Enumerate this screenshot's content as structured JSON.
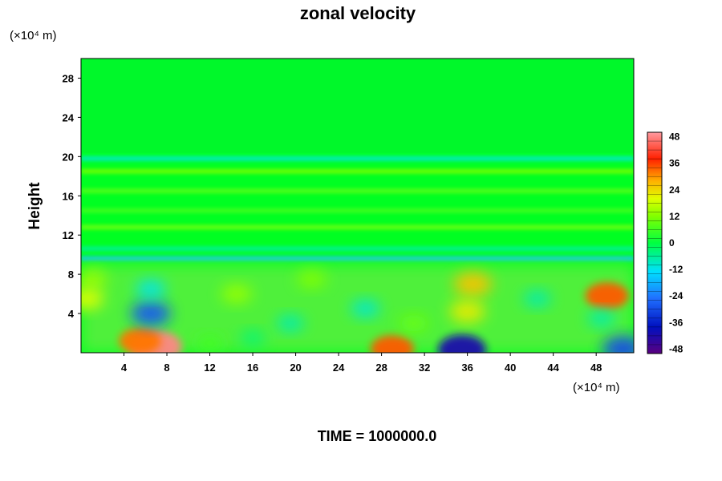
{
  "chart_data": {
    "type": "heatmap",
    "title": "zonal velocity",
    "ylabel": "Height",
    "x_unit": "(×10⁴ m)",
    "y_unit": "(×10⁴ m)",
    "footer": "TIME = 1000000.0",
    "xlim": [
      0,
      51.5
    ],
    "ylim": [
      0,
      30
    ],
    "x_ticks": [
      4,
      8,
      12,
      16,
      20,
      24,
      28,
      32,
      36,
      40,
      44,
      48
    ],
    "y_ticks": [
      4,
      8,
      12,
      16,
      20,
      24,
      28
    ],
    "colorbar": {
      "min": -50,
      "max": 50,
      "ticks": [
        48,
        36,
        24,
        12,
        0,
        -12,
        -24,
        -36,
        -48
      ],
      "colors": [
        "#5a0080",
        "#0010c0",
        "#2070ff",
        "#00e0ff",
        "#00ff60",
        "#40ff00",
        "#e0ff00",
        "#ffb000",
        "#ff2000",
        "#ff9aa0"
      ]
    },
    "features": [
      {
        "x": 7,
        "y": 0.6,
        "value": 48
      },
      {
        "x": 5.5,
        "y": 1.2,
        "value": 32
      },
      {
        "x": 29,
        "y": 0.4,
        "value": 34
      },
      {
        "x": 35.5,
        "y": 0.3,
        "value": -42
      },
      {
        "x": 50.5,
        "y": 0.4,
        "value": -30
      },
      {
        "x": 6.5,
        "y": 4,
        "value": -28
      },
      {
        "x": 6.5,
        "y": 6.5,
        "value": -12
      },
      {
        "x": 1,
        "y": 7.5,
        "value": 14
      },
      {
        "x": 0.5,
        "y": 5.5,
        "value": 20
      },
      {
        "x": 14.5,
        "y": 6,
        "value": 14
      },
      {
        "x": 21.5,
        "y": 7.5,
        "value": 12
      },
      {
        "x": 19.5,
        "y": 3,
        "value": -8
      },
      {
        "x": 26.5,
        "y": 4.5,
        "value": -10
      },
      {
        "x": 36.5,
        "y": 7,
        "value": 26
      },
      {
        "x": 36,
        "y": 4.2,
        "value": 22
      },
      {
        "x": 42.5,
        "y": 5.5,
        "value": -8
      },
      {
        "x": 49,
        "y": 5.8,
        "value": 34
      },
      {
        "x": 48.5,
        "y": 3.5,
        "value": -8
      },
      {
        "x": 16,
        "y": 1.5,
        "value": -4
      },
      {
        "x": 31,
        "y": 3,
        "value": 10
      },
      {
        "x": 12,
        "y": 1,
        "value": 6
      }
    ],
    "bands": [
      {
        "y": 9.6,
        "value": -16
      },
      {
        "y": 10.6,
        "value": -6
      },
      {
        "y": 12.8,
        "value": 10
      },
      {
        "y": 14.5,
        "value": 6
      },
      {
        "y": 16.5,
        "value": 8
      },
      {
        "y": 18.5,
        "value": 11
      },
      {
        "y": 19.8,
        "value": -9
      }
    ]
  }
}
